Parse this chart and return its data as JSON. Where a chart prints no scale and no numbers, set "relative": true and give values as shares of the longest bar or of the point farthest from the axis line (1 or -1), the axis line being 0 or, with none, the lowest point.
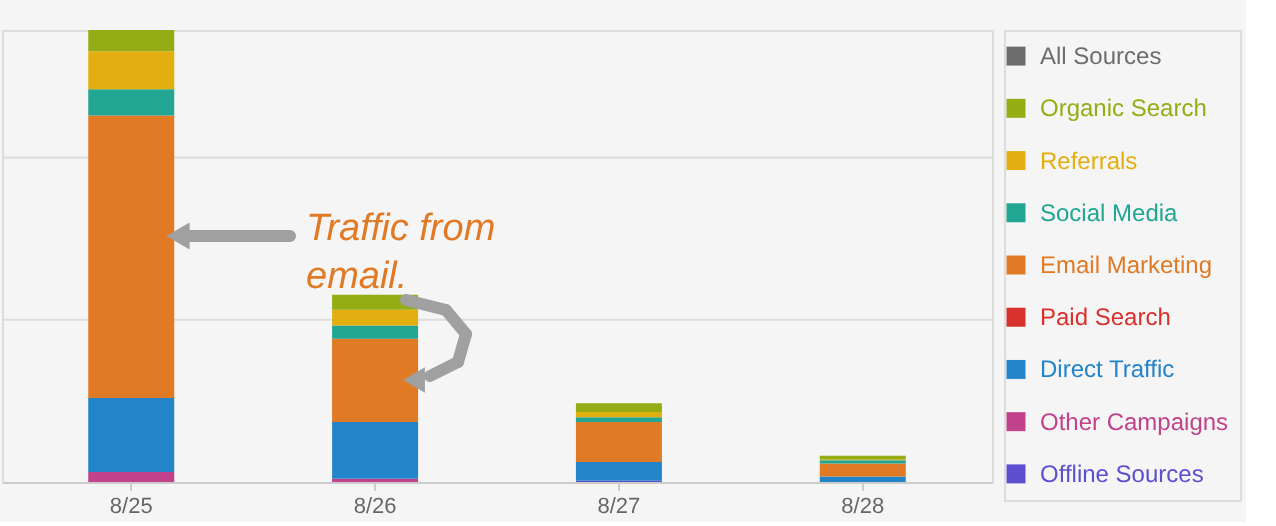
{
  "chart_data": {
    "type": "bar",
    "stacked": true,
    "relative": true,
    "ref_lines": [
      {
        "axis": "y",
        "value": 0.359,
        "color": "#dddddd"
      },
      {
        "axis": "y",
        "value": 0.718,
        "color": "#dddddd"
      }
    ],
    "legend": "right",
    "categories": [
      "8/25",
      "8/26",
      "8/27",
      "8/28"
    ],
    "series": [
      {
        "name": "Offline Sources",
        "color": "#5b4fcf",
        "values": [
          0,
          0,
          0.003,
          0
        ]
      },
      {
        "name": "Other Campaigns",
        "color": "#c0428a",
        "values": [
          0.022,
          0.007,
          0,
          0
        ]
      },
      {
        "name": "Direct Traffic",
        "color": "#2484c9",
        "values": [
          0.164,
          0.126,
          0.041,
          0.012
        ]
      },
      {
        "name": "Paid Search",
        "color": "#d8302a",
        "values": [
          0,
          0,
          0,
          0
        ]
      },
      {
        "name": "Email Marketing",
        "color": "#e07a24",
        "values": [
          0.625,
          0.184,
          0.089,
          0.029
        ]
      },
      {
        "name": "Social Media",
        "color": "#22a592",
        "values": [
          0.058,
          0.029,
          0.01,
          0.007
        ]
      },
      {
        "name": "Referrals",
        "color": "#e2ae10",
        "values": [
          0.084,
          0.035,
          0.012,
          0.002
        ]
      },
      {
        "name": "Organic Search",
        "color": "#95ad14",
        "values": [
          0.047,
          0.033,
          0.019,
          0.008
        ]
      },
      {
        "name": "All Sources",
        "color": "#6d6d6d",
        "values": [
          null,
          null,
          null,
          null
        ]
      }
    ],
    "annotations": [
      "Traffic from\nemail."
    ]
  }
}
